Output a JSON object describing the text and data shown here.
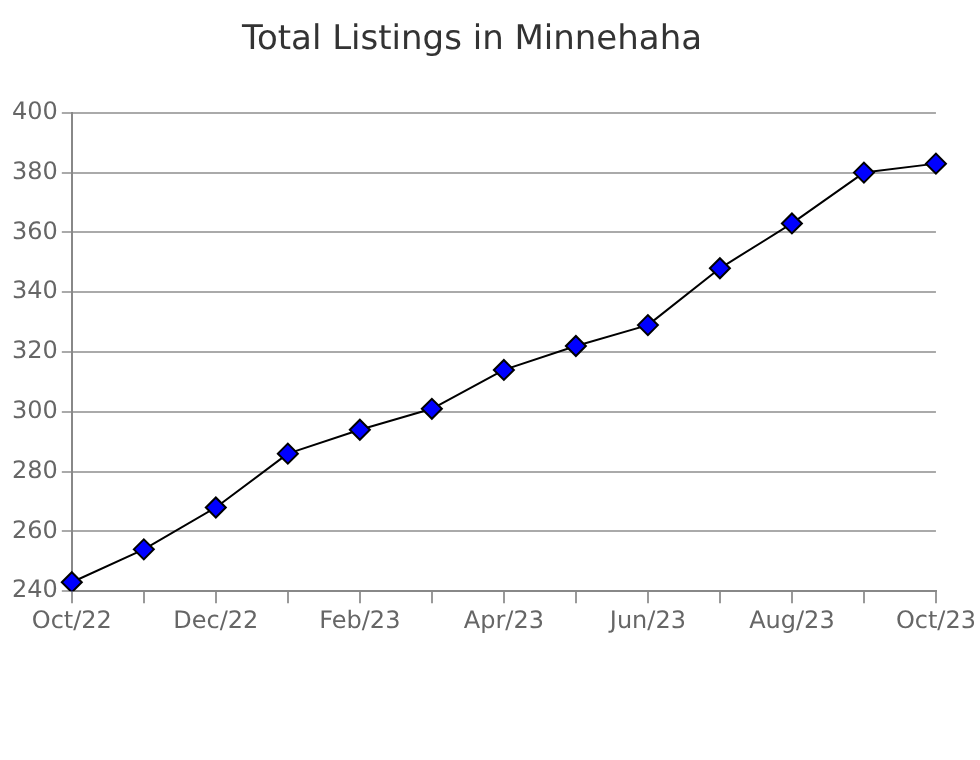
{
  "chart_data": {
    "type": "line",
    "title": "Total Listings in Minnehaha",
    "categories": [
      "Oct/22",
      null,
      "Dec/22",
      null,
      "Feb/23",
      null,
      "Apr/23",
      null,
      "Jun/23",
      null,
      "Aug/23",
      null,
      "Oct/23"
    ],
    "series": [
      {
        "color": "#0000ff",
        "values": [
          243,
          254,
          268,
          286,
          294,
          301,
          314,
          322,
          329,
          348,
          363,
          380,
          383
        ]
      }
    ],
    "ylim": [
      240,
      400
    ],
    "yticks": [
      240,
      260,
      280,
      300,
      320,
      340,
      360,
      380,
      400
    ],
    "grid": "y",
    "legend": false,
    "marker": "diamond",
    "line_style": "solid"
  }
}
